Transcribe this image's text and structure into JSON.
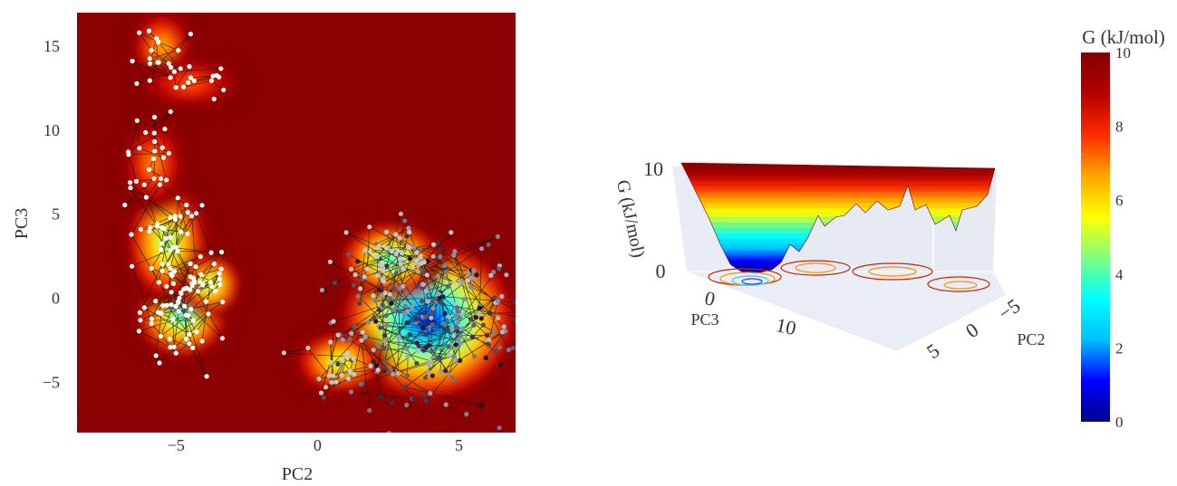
{
  "chart_data": [
    {
      "type": "heatmap",
      "xlabel": "PC2",
      "ylabel": "PC3",
      "xlim": [
        -8.5,
        7
      ],
      "ylim": [
        -8,
        17
      ],
      "xticks": [
        -5,
        0,
        5
      ],
      "yticks": [
        -5,
        0,
        5,
        10,
        15
      ],
      "xtick_labels": [
        "−5",
        "0",
        "5"
      ],
      "ytick_labels": [
        "−5",
        "0",
        "5",
        "10",
        "15"
      ],
      "background_level_kJmol": 10,
      "basins": [
        {
          "pc2": 3.9,
          "pc3": -1.3,
          "min_g": 0.2,
          "sx": 1.7,
          "sy": 2.6
        },
        {
          "pc2": 2.6,
          "pc3": 2.3,
          "min_g": 3.0,
          "sx": 1.0,
          "sy": 1.2
        },
        {
          "pc2": 0.8,
          "pc3": -3.8,
          "min_g": 4.5,
          "sx": 0.9,
          "sy": 1.0
        },
        {
          "pc2": -4.8,
          "pc3": -1.0,
          "min_g": 3.0,
          "sx": 0.9,
          "sy": 1.4
        },
        {
          "pc2": -5.3,
          "pc3": 3.3,
          "min_g": 4.0,
          "sx": 0.8,
          "sy": 2.0
        },
        {
          "pc2": -3.8,
          "pc3": 0.8,
          "min_g": 4.0,
          "sx": 0.6,
          "sy": 1.0
        },
        {
          "pc2": -5.8,
          "pc3": 8.0,
          "min_g": 6.5,
          "sx": 0.6,
          "sy": 1.5
        },
        {
          "pc2": -5.5,
          "pc3": 15.0,
          "min_g": 6.0,
          "sx": 0.6,
          "sy": 1.2
        },
        {
          "pc2": -4.5,
          "pc3": 12.8,
          "min_g": 7.0,
          "sx": 1.0,
          "sy": 0.8
        }
      ]
    },
    {
      "type": "surface_3d",
      "zlabel": "G (kJ/mol)",
      "xlabel": "PC3",
      "ylabel": "PC2",
      "z_ticks": [
        "0",
        "10"
      ],
      "pc3_ticks": [
        "0",
        "10"
      ],
      "pc2_ticks": [
        "−5",
        "0",
        "5"
      ],
      "zlim": [
        0,
        10
      ],
      "min_location": {
        "pc3": -1.3,
        "pc2": 3.9,
        "g": 0.2
      }
    },
    {
      "type": "colorbar",
      "title": "G (kJ/mol)",
      "range": [
        0,
        10
      ],
      "ticks": [
        0,
        2,
        4,
        6,
        8,
        10
      ],
      "tick_labels": [
        "0",
        "2",
        "4",
        "6",
        "8",
        "10"
      ],
      "colorscale": [
        "#00008b",
        "#0000ff",
        "#00bfff",
        "#00ffff",
        "#7fff7f",
        "#ffff00",
        "#ffa500",
        "#ff2a00",
        "#b40000",
        "#800000"
      ]
    }
  ]
}
